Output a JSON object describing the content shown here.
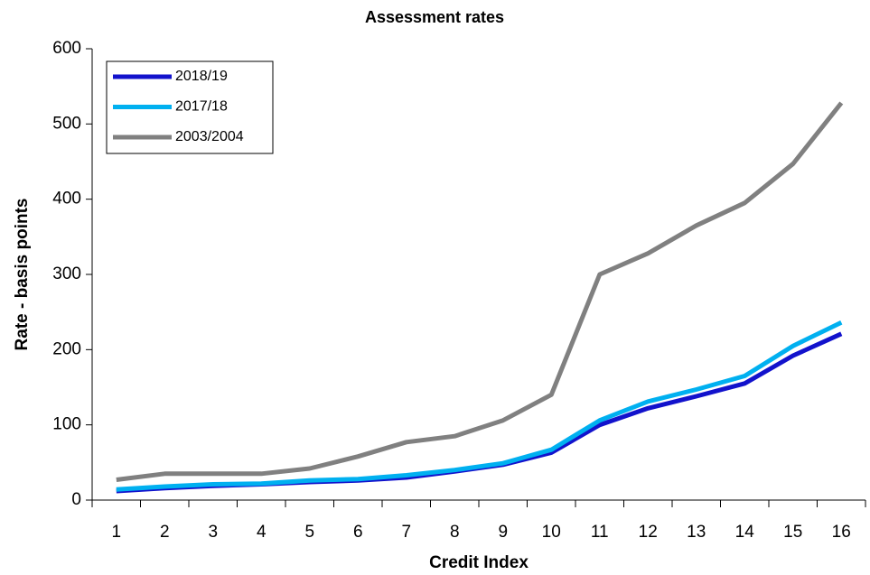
{
  "chart_data": {
    "type": "line",
    "title": "Assessment rates",
    "x_label": "Credit Index",
    "y_label": "Rate - basis points",
    "categories": [
      1,
      2,
      3,
      4,
      5,
      6,
      7,
      8,
      9,
      10,
      11,
      12,
      13,
      14,
      15,
      16
    ],
    "series": [
      {
        "name": "2018/19",
        "color": "#1212cc",
        "values": [
          12,
          16,
          19,
          21,
          24,
          26,
          30,
          38,
          47,
          63,
          100,
          122,
          138,
          155,
          192,
          221
        ]
      },
      {
        "name": "2017/18",
        "color": "#00b0f0",
        "values": [
          14,
          18,
          21,
          22,
          26,
          28,
          33,
          40,
          49,
          67,
          106,
          131,
          147,
          165,
          205,
          236
        ]
      },
      {
        "name": "2003/2004",
        "color": "#808080",
        "values": [
          27,
          35,
          35,
          35,
          42,
          58,
          77,
          85,
          106,
          140,
          300,
          328,
          365,
          395,
          447,
          528
        ]
      }
    ],
    "ylim": [
      0,
      600
    ],
    "yticks": [
      0,
      100,
      200,
      300,
      400,
      500,
      600
    ],
    "grid": false,
    "legend": "top-left"
  }
}
